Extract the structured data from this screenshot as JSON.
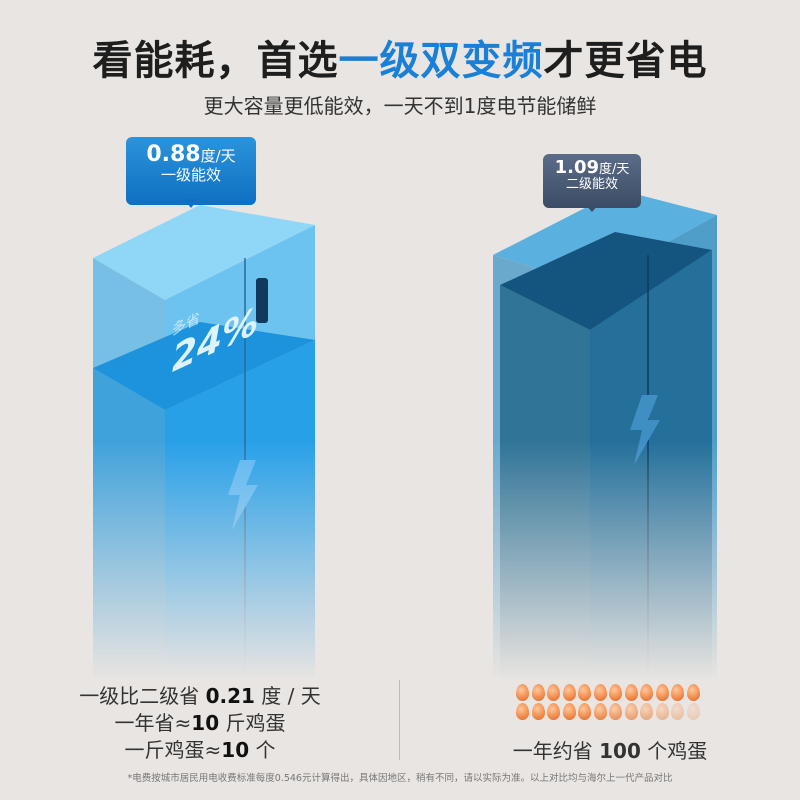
{
  "headline": {
    "part1": "看能耗，首选",
    "highlight": "一级双变频",
    "part2": "才更省电"
  },
  "subtitle": "更大容量更低能效，一天不到1度电节能储鲜",
  "fridge_left": {
    "value": "0.88",
    "unit": "度/天",
    "level": "一级能效",
    "save_label": "多省",
    "save_percent": "24%",
    "color": "#1a8fe0"
  },
  "fridge_right": {
    "value": "1.09",
    "unit": "度/天",
    "level": "二级能效",
    "color": "#1d5f8c"
  },
  "left_summary": {
    "line1_pre": "一级比二级省 ",
    "line1_num": "0.21",
    "line1_post": " 度 / 天",
    "line2_pre": "一年省≈",
    "line2_num": "10",
    "line2_post": " 斤鸡蛋",
    "line3_pre": "一斤鸡蛋≈",
    "line3_num": "10",
    "line3_post": " 个"
  },
  "right_summary": {
    "pre": "一年约省 ",
    "num": "100",
    "post": " 个鸡蛋",
    "egg_count": 24
  },
  "footnote": "*电费按城市居民用电收费标准每度0.546元计算得出，具体因地区，稍有不同，请以实际为准。以上对比均与海尔上一代产品对比"
}
